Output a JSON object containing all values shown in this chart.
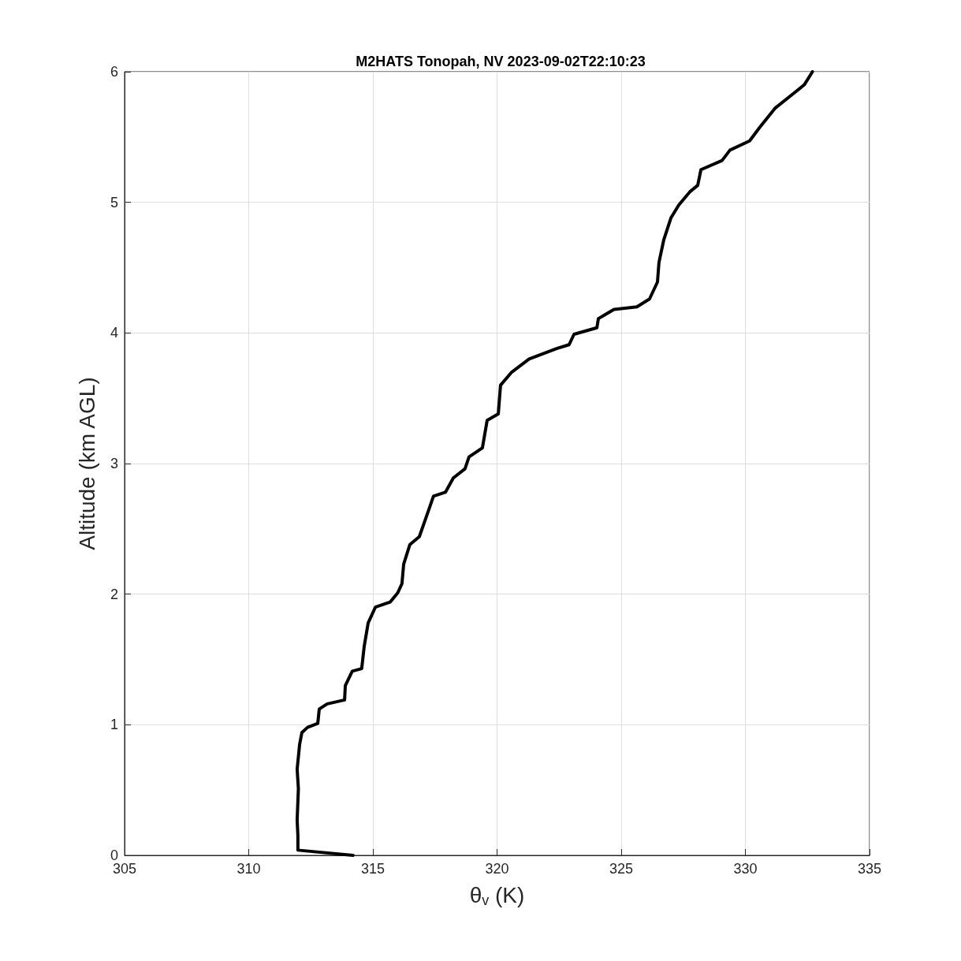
{
  "chart_data": {
    "type": "line",
    "title": "M2HATS Tonopah, NV 2023-09-02T22:10:23",
    "xlabel": "θ$_{v}$ (K)",
    "ylabel": "Altitude (km AGL)",
    "xlim": [
      305,
      335
    ],
    "xticks": [
      305,
      310,
      315,
      320,
      325,
      330,
      335
    ],
    "ylim": [
      0,
      6
    ],
    "yticks": [
      0,
      1,
      2,
      3,
      4,
      5,
      6
    ],
    "grid": true,
    "marker": "none",
    "line_style": "solid",
    "series": [
      {
        "color": "#000000",
        "x": [
          314.2,
          311.98,
          311.98,
          311.95,
          312.0,
          311.95,
          312.05,
          312.14,
          312.37,
          312.78,
          312.84,
          313.16,
          313.86,
          313.89,
          314.17,
          314.55,
          314.65,
          314.81,
          315.1,
          315.7,
          316.0,
          316.17,
          316.24,
          316.49,
          316.87,
          317.22,
          317.44,
          317.92,
          318.24,
          318.71,
          318.87,
          319.41,
          319.6,
          320.05,
          320.14,
          320.59,
          321.29,
          322.4,
          322.9,
          323.1,
          324.02,
          324.08,
          324.71,
          325.63,
          326.14,
          326.46,
          326.52,
          326.71,
          327.0,
          327.32,
          327.76,
          328.08,
          328.21,
          329.06,
          329.38,
          330.17,
          330.56,
          331.19,
          331.98,
          332.37,
          332.7
        ],
        "values": [
          0.0,
          0.04,
          0.15,
          0.27,
          0.51,
          0.66,
          0.85,
          0.94,
          0.98,
          1.01,
          1.12,
          1.16,
          1.19,
          1.3,
          1.41,
          1.43,
          1.6,
          1.78,
          1.9,
          1.94,
          2.01,
          2.08,
          2.23,
          2.38,
          2.44,
          2.63,
          2.75,
          2.78,
          2.89,
          2.96,
          3.05,
          3.12,
          3.33,
          3.38,
          3.6,
          3.7,
          3.8,
          3.88,
          3.91,
          3.99,
          4.04,
          4.11,
          4.18,
          4.2,
          4.26,
          4.39,
          4.54,
          4.71,
          4.88,
          4.98,
          5.08,
          5.13,
          5.25,
          5.32,
          5.4,
          5.47,
          5.57,
          5.72,
          5.84,
          5.9,
          6.0
        ]
      }
    ]
  }
}
